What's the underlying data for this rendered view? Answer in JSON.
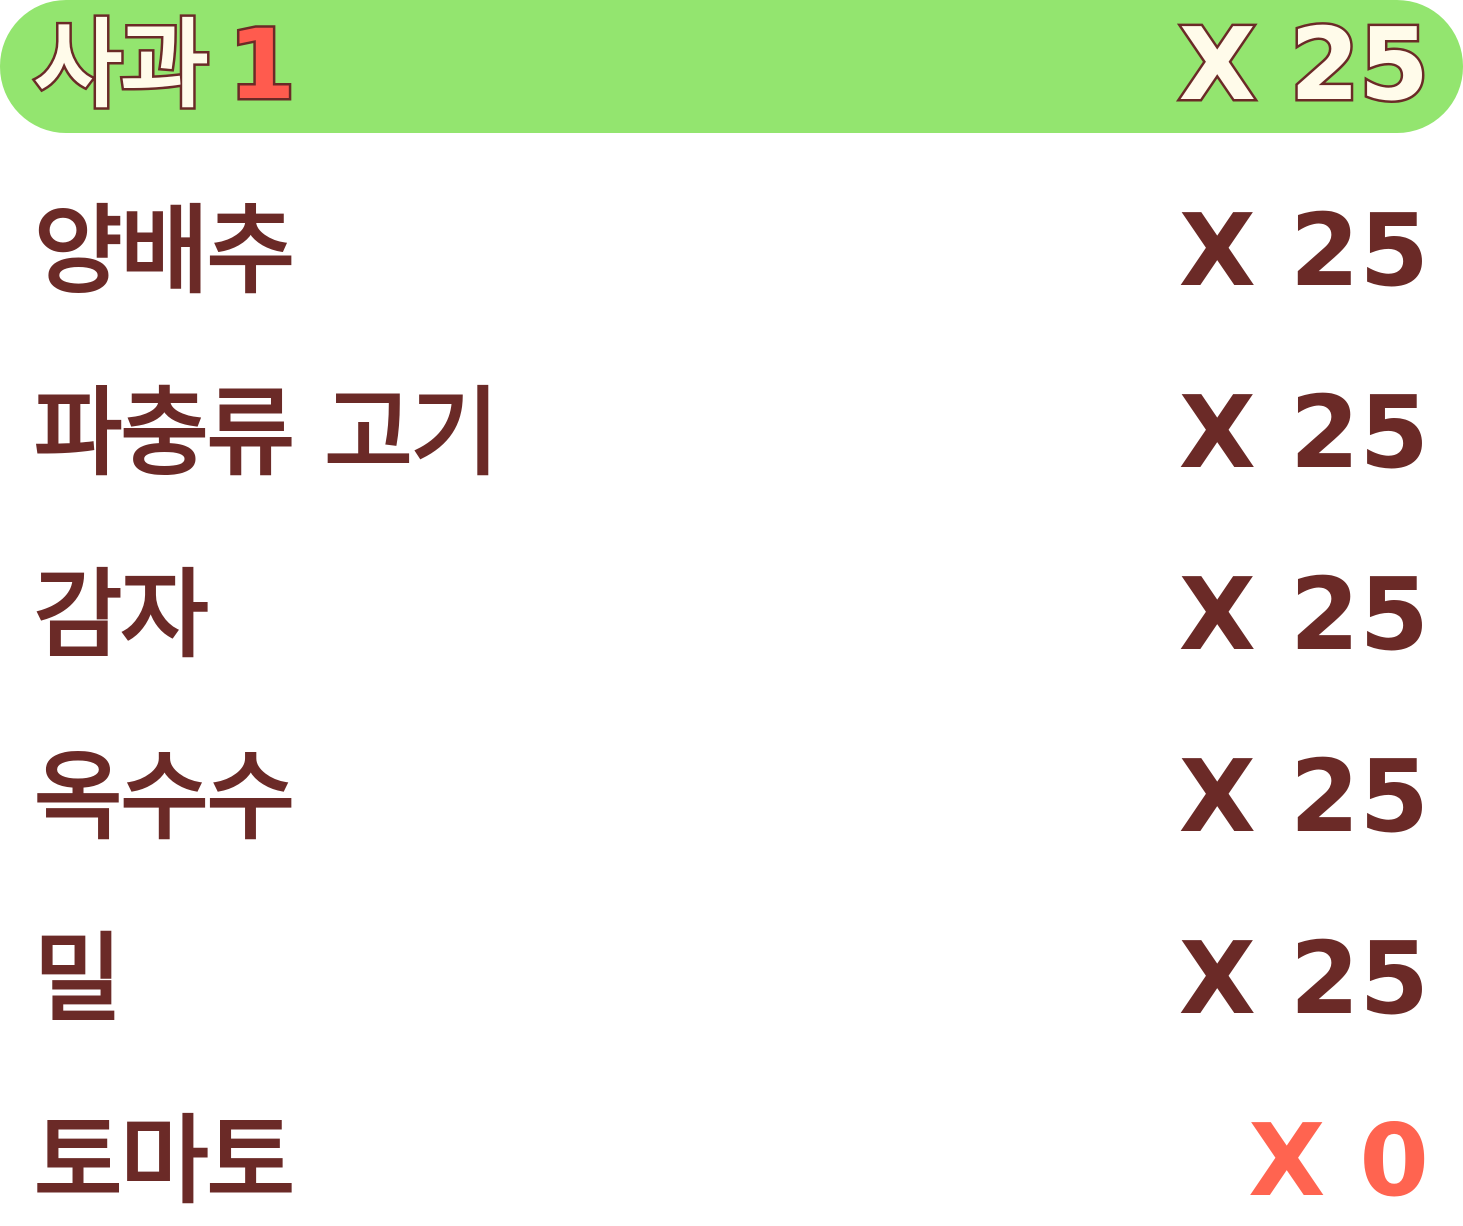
{
  "items": [
    {
      "name": "사과",
      "badge": "1",
      "x_label": "X",
      "count": "25",
      "selected": true
    },
    {
      "name": "양배추",
      "badge": "",
      "x_label": "X",
      "count": "25",
      "selected": false
    },
    {
      "name": "파충류 고기",
      "badge": "",
      "x_label": "X",
      "count": "25",
      "selected": false
    },
    {
      "name": "감자",
      "badge": "",
      "x_label": "X",
      "count": "25",
      "selected": false
    },
    {
      "name": "옥수수",
      "badge": "",
      "x_label": "X",
      "count": "25",
      "selected": false
    },
    {
      "name": "밀",
      "badge": "",
      "x_label": "X",
      "count": "25",
      "selected": false
    },
    {
      "name": "토마토",
      "badge": "",
      "x_label": "X",
      "count": "0",
      "selected": false
    }
  ],
  "colors": {
    "text": "#6b2a27",
    "highlight": "#93e56f",
    "highlight_text": "#fffbea",
    "badge": "#ff5b4e",
    "empty": "#ff6450"
  }
}
